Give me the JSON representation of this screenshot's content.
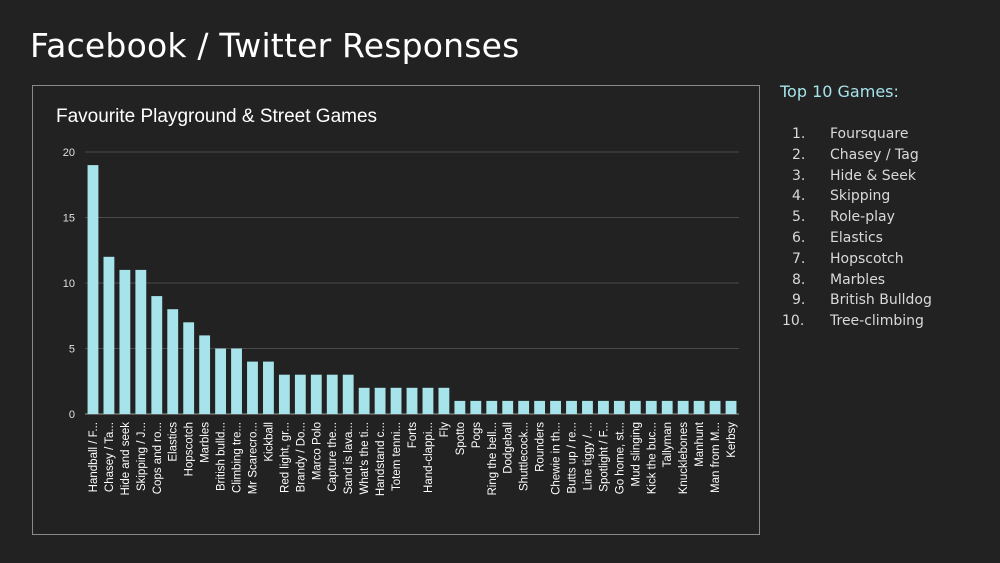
{
  "slide": {
    "title": "Facebook / Twitter Responses"
  },
  "top_games": {
    "heading": "Top 10 Games:",
    "items": [
      {
        "num": "1.",
        "name": "Foursquare"
      },
      {
        "num": "2.",
        "name": "Chasey / Tag"
      },
      {
        "num": "3.",
        "name": "Hide & Seek"
      },
      {
        "num": "4.",
        "name": "Skipping"
      },
      {
        "num": "5.",
        "name": "Role-play"
      },
      {
        "num": "6.",
        "name": "Elastics"
      },
      {
        "num": "7.",
        "name": "Hopscotch"
      },
      {
        "num": "8.",
        "name": "Marbles"
      },
      {
        "num": "9.",
        "name": "British Bulldog"
      },
      {
        "num": "10.",
        "name": "Tree-climbing"
      }
    ]
  },
  "chart_data": {
    "type": "bar",
    "title": "Favourite Playground & Street Games",
    "xlabel": "",
    "ylabel": "",
    "ylim": [
      0,
      20
    ],
    "yticks": [
      "0",
      "5",
      "10",
      "15",
      "20"
    ],
    "grid": true,
    "bar_color": "#a6e3ea",
    "categories": [
      "Handball / F...",
      "Chasey / Ta...",
      "Hide and seek",
      "Skipping / J...",
      "Cops and ro...",
      "Elastics",
      "Hopscotch",
      "Marbles",
      "British bulld...",
      "Climbing tre...",
      "Mr Scarecro...",
      "Kickball",
      "Red light, gr...",
      "Brandy / Do...",
      "Marco Polo",
      "Capture the...",
      "Sand is lava...",
      "What's the ti...",
      "Handstand c...",
      "Totem tenni...",
      "Forts",
      "Hand-clappi...",
      "Fly",
      "Spotto",
      "Pogs",
      "Ring the bell...",
      "Dodgeball",
      "Shuttlecock...",
      "Rounders",
      "Chewie in th...",
      "Butts up / re...",
      "Line tiggy / ...",
      "Spotlight / F...",
      "Go home, st...",
      "Mud slinging",
      "Kick the buc...",
      "Tallyman",
      "Knucklebones",
      "Manhunt",
      "Man from M...",
      "Kerbsy"
    ],
    "values": [
      19,
      12,
      11,
      11,
      9,
      8,
      7,
      6,
      5,
      5,
      4,
      4,
      3,
      3,
      3,
      3,
      3,
      2,
      2,
      2,
      2,
      2,
      2,
      1,
      1,
      1,
      1,
      1,
      1,
      1,
      1,
      1,
      1,
      1,
      1,
      1,
      1,
      1,
      1,
      1,
      1
    ]
  }
}
